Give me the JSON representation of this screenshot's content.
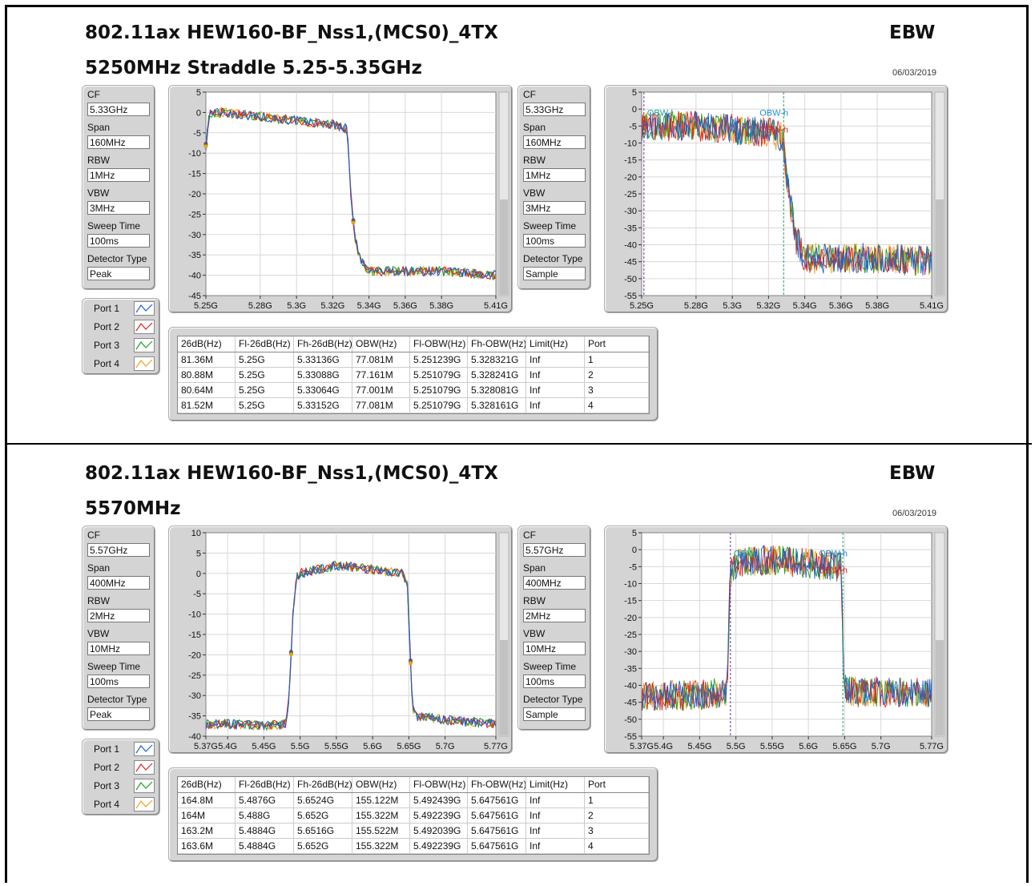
{
  "sections": [
    {
      "title": "802.11ax HEW160-BF_Nss1,(MCS0)_4TX",
      "subtitle": "5250MHz Straddle 5.25-5.35GHz",
      "ebw": "EBW",
      "date": "06/03/2019",
      "params_left": [
        {
          "label": "CF",
          "value": "5.33GHz"
        },
        {
          "label": "Span",
          "value": "160MHz"
        },
        {
          "label": "RBW",
          "value": "1MHz"
        },
        {
          "label": "VBW",
          "value": "3MHz"
        },
        {
          "label": "Sweep Time",
          "value": "100ms"
        },
        {
          "label": "Detector Type",
          "value": "Peak"
        }
      ],
      "params_right": [
        {
          "label": "CF",
          "value": "5.33GHz"
        },
        {
          "label": "Span",
          "value": "160MHz"
        },
        {
          "label": "RBW",
          "value": "1MHz"
        },
        {
          "label": "VBW",
          "value": "3MHz"
        },
        {
          "label": "Sweep Time",
          "value": "100ms"
        },
        {
          "label": "Detector Type",
          "value": "Sample"
        }
      ],
      "legend": [
        {
          "label": "Port 1",
          "color": "#1f5fd0"
        },
        {
          "label": "Port 2",
          "color": "#e02020"
        },
        {
          "label": "Port 3",
          "color": "#20a020"
        },
        {
          "label": "Port 4",
          "color": "#f0a020"
        }
      ],
      "table": {
        "columns": [
          "26dB(Hz)",
          "Fl-26dB(Hz)",
          "Fh-26dB(Hz)",
          "OBW(Hz)",
          "Fl-OBW(Hz)",
          "Fh-OBW(Hz)",
          "Limit(Hz)",
          "Port"
        ],
        "rows": [
          [
            "81.36M",
            "5.25G",
            "5.33136G",
            "77.081M",
            "5.251239G",
            "5.328321G",
            "Inf",
            "1"
          ],
          [
            "80.88M",
            "5.25G",
            "5.33088G",
            "77.161M",
            "5.251079G",
            "5.328241G",
            "Inf",
            "2"
          ],
          [
            "80.64M",
            "5.25G",
            "5.33064G",
            "77.001M",
            "5.251079G",
            "5.328081G",
            "Inf",
            "3"
          ],
          [
            "81.52M",
            "5.25G",
            "5.33152G",
            "77.081M",
            "5.251079G",
            "5.328161G",
            "Inf",
            "4"
          ]
        ]
      },
      "chart_data": [
        {
          "type": "line",
          "detector": "Peak",
          "x_ticks": [
            "5.25G",
            "5.28G",
            "5.3G",
            "5.32G",
            "5.34G",
            "5.36G",
            "5.38G",
            "5.41G"
          ],
          "y_ticks": [
            "5",
            "0",
            "-5",
            "-10",
            "-15",
            "-20",
            "-25",
            "-30",
            "-35",
            "-40",
            "-45"
          ],
          "xlim": [
            5.25,
            5.41
          ],
          "ylim": [
            -45,
            5
          ],
          "grid": true,
          "series": [
            {
              "name": "Port 1"
            },
            {
              "name": "Port 2"
            },
            {
              "name": "Port 3"
            },
            {
              "name": "Port 4"
            }
          ],
          "x": [
            5.25,
            5.252,
            5.26,
            5.28,
            5.3,
            5.32,
            5.328,
            5.33,
            5.332,
            5.335,
            5.34,
            5.36,
            5.38,
            5.41
          ],
          "y": [
            -8,
            0,
            0,
            -1,
            -2,
            -3,
            -4,
            -20,
            -30,
            -36,
            -39,
            -39,
            -39,
            -40
          ]
        },
        {
          "type": "line",
          "detector": "Sample",
          "x_ticks": [
            "5.25G",
            "5.28G",
            "5.3G",
            "5.32G",
            "5.34G",
            "5.36G",
            "5.38G",
            "5.41G"
          ],
          "y_ticks": [
            "5",
            "0",
            "-5",
            "-10",
            "-15",
            "-20",
            "-25",
            "-30",
            "-35",
            "-40",
            "-45",
            "-50",
            "-55"
          ],
          "xlim": [
            5.25,
            5.41
          ],
          "ylim": [
            -55,
            5
          ],
          "grid": true,
          "series": [
            {
              "name": "Port 1"
            },
            {
              "name": "Port 2"
            },
            {
              "name": "Port 3"
            },
            {
              "name": "Port 4"
            }
          ],
          "annotations": [
            "OBW-l",
            "OBW-h",
            "OBW-h"
          ],
          "x": [
            5.251,
            5.26,
            5.28,
            5.3,
            5.32,
            5.328,
            5.33,
            5.335,
            5.34,
            5.36,
            5.38,
            5.41
          ],
          "y": [
            -5,
            -5,
            -5,
            -6,
            -7,
            -8,
            -20,
            -38,
            -44,
            -44,
            -44,
            -45
          ]
        }
      ]
    },
    {
      "title": "802.11ax HEW160-BF_Nss1,(MCS0)_4TX",
      "subtitle": "5570MHz",
      "ebw": "EBW",
      "date": "06/03/2019",
      "params_left": [
        {
          "label": "CF",
          "value": "5.57GHz"
        },
        {
          "label": "Span",
          "value": "400MHz"
        },
        {
          "label": "RBW",
          "value": "2MHz"
        },
        {
          "label": "VBW",
          "value": "10MHz"
        },
        {
          "label": "Sweep Time",
          "value": "100ms"
        },
        {
          "label": "Detector Type",
          "value": "Peak"
        }
      ],
      "params_right": [
        {
          "label": "CF",
          "value": "5.57GHz"
        },
        {
          "label": "Span",
          "value": "400MHz"
        },
        {
          "label": "RBW",
          "value": "2MHz"
        },
        {
          "label": "VBW",
          "value": "10MHz"
        },
        {
          "label": "Sweep Time",
          "value": "100ms"
        },
        {
          "label": "Detector Type",
          "value": "Sample"
        }
      ],
      "legend": [
        {
          "label": "Port 1",
          "color": "#1f5fd0"
        },
        {
          "label": "Port 2",
          "color": "#e02020"
        },
        {
          "label": "Port 3",
          "color": "#20a020"
        },
        {
          "label": "Port 4",
          "color": "#f0a020"
        }
      ],
      "table": {
        "columns": [
          "26dB(Hz)",
          "Fl-26dB(Hz)",
          "Fh-26dB(Hz)",
          "OBW(Hz)",
          "Fl-OBW(Hz)",
          "Fh-OBW(Hz)",
          "Limit(Hz)",
          "Port"
        ],
        "rows": [
          [
            "164.8M",
            "5.4876G",
            "5.6524G",
            "155.122M",
            "5.492439G",
            "5.647561G",
            "Inf",
            "1"
          ],
          [
            "164M",
            "5.488G",
            "5.652G",
            "155.322M",
            "5.492239G",
            "5.647561G",
            "Inf",
            "2"
          ],
          [
            "163.2M",
            "5.4884G",
            "5.6516G",
            "155.522M",
            "5.492039G",
            "5.647561G",
            "Inf",
            "3"
          ],
          [
            "163.6M",
            "5.4884G",
            "5.652G",
            "155.322M",
            "5.492239G",
            "5.647561G",
            "Inf",
            "4"
          ]
        ]
      },
      "chart_data": [
        {
          "type": "line",
          "detector": "Peak",
          "x_ticks": [
            "5.37G",
            "5.4G",
            "5.45G",
            "5.5G",
            "5.55G",
            "5.6G",
            "5.65G",
            "5.7G",
            "5.77G"
          ],
          "y_ticks": [
            "10",
            "5",
            "0",
            "-5",
            "-10",
            "-15",
            "-20",
            "-25",
            "-30",
            "-35",
            "-40"
          ],
          "xlim": [
            5.37,
            5.77
          ],
          "ylim": [
            -40,
            10
          ],
          "grid": true,
          "series": [
            {
              "name": "Port 1"
            },
            {
              "name": "Port 2"
            },
            {
              "name": "Port 3"
            },
            {
              "name": "Port 4"
            }
          ],
          "x": [
            5.37,
            5.4,
            5.45,
            5.48,
            5.485,
            5.49,
            5.495,
            5.5,
            5.55,
            5.6,
            5.64,
            5.648,
            5.652,
            5.655,
            5.66,
            5.7,
            5.77
          ],
          "y": [
            -37,
            -37,
            -37.5,
            -37,
            -30,
            -10,
            -1,
            0,
            2,
            1,
            0,
            -3,
            -20,
            -33,
            -35,
            -36,
            -37
          ]
        },
        {
          "type": "line",
          "detector": "Sample",
          "x_ticks": [
            "5.37G",
            "5.4G",
            "5.45G",
            "5.5G",
            "5.55G",
            "5.6G",
            "5.65G",
            "5.7G",
            "5.77G"
          ],
          "y_ticks": [
            "5",
            "0",
            "-5",
            "-10",
            "-15",
            "-20",
            "-25",
            "-30",
            "-35",
            "-40",
            "-45",
            "-50",
            "-55"
          ],
          "xlim": [
            5.37,
            5.77
          ],
          "ylim": [
            -55,
            5
          ],
          "grid": true,
          "series": [
            {
              "name": "Port 1"
            },
            {
              "name": "Port 2"
            },
            {
              "name": "Port 3"
            },
            {
              "name": "Port 4"
            }
          ],
          "annotations": [
            "OBW-l",
            "OBW-h",
            "OBW-h"
          ],
          "x": [
            5.37,
            5.45,
            5.488,
            5.492,
            5.5,
            5.55,
            5.6,
            5.645,
            5.648,
            5.65,
            5.66,
            5.7,
            5.77
          ],
          "y": [
            -43,
            -43,
            -42,
            -8,
            -4,
            -3,
            -4,
            -5,
            -30,
            -40,
            -42,
            -42,
            -42
          ]
        }
      ]
    }
  ]
}
